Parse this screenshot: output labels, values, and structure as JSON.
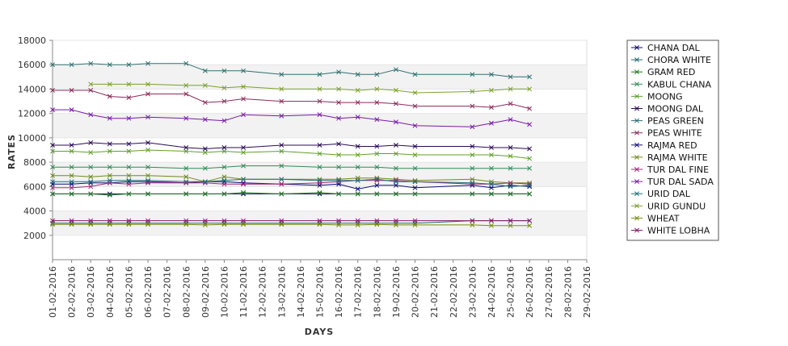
{
  "chart_data": {
    "type": "line",
    "xlabel": "DAYS",
    "ylabel": "RATES",
    "ylim": [
      0,
      18000
    ],
    "yticks": [
      2000,
      4000,
      6000,
      8000,
      10000,
      12000,
      14000,
      16000,
      18000
    ],
    "grid": "alternating horizontal bands",
    "legend_position": "right",
    "x": [
      "01-02-2016",
      "02-02-2016",
      "03-02-2016",
      "04-02-2016",
      "05-02-2016",
      "06-02-2016",
      "07-02-2016",
      "08-02-2016",
      "09-02-2016",
      "10-02-2016",
      "11-02-2016",
      "12-02-2016",
      "13-02-2016",
      "14-02-2016",
      "15-02-2016",
      "16-02-2016",
      "17-02-2016",
      "18-02-2016",
      "19-02-2016",
      "20-02-2016",
      "21-02-2016",
      "22-02-2016",
      "23-02-2016",
      "24-02-2016",
      "25-02-2016",
      "26-02-2016",
      "27-02-2016",
      "28-02-2016",
      "29-02-2016"
    ],
    "series": [
      {
        "name": "CHANA DAL",
        "color": "#0a0a6e",
        "values": [
          5400,
          5400,
          5400,
          5400,
          5400,
          5400,
          null,
          5400,
          5400,
          5400,
          5400,
          null,
          5400,
          null,
          5400,
          5400,
          5400,
          5400,
          5400,
          5400,
          null,
          null,
          5400,
          5400,
          5400,
          5400,
          null,
          null,
          null
        ]
      },
      {
        "name": "CHORA WHITE",
        "color": "#1d6a6a",
        "values": [
          3000,
          3000,
          3000,
          3000,
          3000,
          3000,
          null,
          3000,
          3000,
          3000,
          3000,
          null,
          3000,
          null,
          3000,
          3000,
          3000,
          3000,
          3000,
          3000,
          null,
          null,
          3200,
          3200,
          3200,
          3200,
          null,
          null,
          null
        ]
      },
      {
        "name": "GRAM RED",
        "color": "#1f7a1f",
        "values": [
          5400,
          5400,
          5400,
          5300,
          5400,
          5400,
          null,
          5400,
          5400,
          5400,
          5500,
          null,
          5400,
          null,
          5500,
          5400,
          5400,
          5400,
          5400,
          5400,
          null,
          null,
          5400,
          5400,
          5400,
          5400,
          null,
          null,
          null
        ]
      },
      {
        "name": "KABUL CHANA",
        "color": "#2e8b57",
        "values": [
          7600,
          7600,
          7600,
          7600,
          7600,
          7600,
          null,
          7500,
          7500,
          7600,
          7700,
          null,
          7700,
          null,
          7600,
          7600,
          7600,
          7600,
          7500,
          7500,
          null,
          null,
          7500,
          7500,
          7500,
          7500,
          null,
          null,
          null
        ]
      },
      {
        "name": "MOONG",
        "color": "#5fa02a",
        "values": [
          8900,
          8900,
          8800,
          8900,
          8900,
          9000,
          null,
          8900,
          8800,
          8900,
          8800,
          null,
          8900,
          null,
          8700,
          8600,
          8600,
          8700,
          8700,
          8600,
          null,
          null,
          8600,
          8600,
          8500,
          8300,
          null,
          null,
          null
        ]
      },
      {
        "name": "MOONG DAL",
        "color": "#2a0a55",
        "values": [
          9400,
          9400,
          9600,
          9500,
          9500,
          9600,
          null,
          9200,
          9100,
          9200,
          9200,
          null,
          9400,
          null,
          9400,
          9500,
          9300,
          9300,
          9400,
          9300,
          null,
          null,
          9300,
          9200,
          9200,
          9100,
          null,
          null,
          null
        ]
      },
      {
        "name": "PEAS GREEN",
        "color": "#2f6f6f",
        "values": [
          16000,
          16000,
          16100,
          16000,
          16000,
          16100,
          null,
          16100,
          15500,
          15500,
          15500,
          null,
          15200,
          null,
          15200,
          15400,
          15200,
          15200,
          15600,
          15200,
          null,
          null,
          15200,
          15200,
          15000,
          15000,
          null,
          null,
          null
        ]
      },
      {
        "name": "PEAS WHITE",
        "color": "#8a2a5a",
        "values": [
          13900,
          13900,
          13900,
          13400,
          13300,
          13600,
          null,
          13600,
          12900,
          13000,
          13200,
          null,
          13000,
          null,
          13000,
          12900,
          12900,
          12900,
          12800,
          12600,
          null,
          null,
          12600,
          12500,
          12800,
          12400,
          null,
          null,
          null
        ]
      },
      {
        "name": "RAJMA RED",
        "color": "#0e0e7a",
        "values": [
          6200,
          6200,
          6300,
          6300,
          6400,
          6400,
          null,
          6300,
          6400,
          6400,
          6300,
          null,
          6200,
          null,
          6100,
          6200,
          5800,
          6100,
          6100,
          5900,
          null,
          null,
          6100,
          5900,
          6100,
          6000,
          null,
          null,
          null
        ]
      },
      {
        "name": "RAJMA WHITE",
        "color": "#6d8c1a",
        "values": [
          6900,
          6900,
          6800,
          6900,
          6900,
          6900,
          null,
          6800,
          6400,
          6800,
          6600,
          null,
          6600,
          null,
          6600,
          6600,
          6700,
          6700,
          6600,
          6500,
          null,
          null,
          6600,
          6400,
          6300,
          6300,
          null,
          null,
          null
        ]
      },
      {
        "name": "TUR DAL FINE",
        "color": "#a2287a",
        "values": [
          5900,
          5900,
          6000,
          6300,
          6200,
          6300,
          null,
          6300,
          6300,
          6200,
          6200,
          null,
          6200,
          null,
          6300,
          6400,
          6500,
          6500,
          6500,
          6400,
          null,
          null,
          6200,
          6200,
          6300,
          6200,
          null,
          null,
          null
        ]
      },
      {
        "name": "TUR DAL SADA",
        "color": "#7a1aa8",
        "values": [
          12300,
          12300,
          11900,
          11600,
          11600,
          11700,
          null,
          11600,
          11500,
          11400,
          11900,
          null,
          11800,
          null,
          11900,
          11600,
          11700,
          11500,
          11300,
          11000,
          null,
          null,
          10900,
          11200,
          11500,
          11100,
          null,
          null,
          null
        ]
      },
      {
        "name": "URID DAL",
        "color": "#1f6f7a",
        "values": [
          6400,
          6400,
          6400,
          6500,
          6500,
          6500,
          null,
          6400,
          6400,
          6500,
          6600,
          null,
          6600,
          null,
          6500,
          6500,
          6500,
          6600,
          6400,
          6400,
          null,
          null,
          6300,
          6200,
          6000,
          6100,
          null,
          null,
          null
        ]
      },
      {
        "name": "URID GUNDU",
        "color": "#7aa02a",
        "values": [
          null,
          null,
          14400,
          14400,
          14400,
          14400,
          null,
          14300,
          14300,
          14100,
          14200,
          null,
          14000,
          null,
          14000,
          14000,
          13900,
          14000,
          13900,
          13700,
          null,
          null,
          13800,
          13900,
          14000,
          14000,
          null,
          null,
          null
        ]
      },
      {
        "name": "WHEAT",
        "color": "#7a8c0a",
        "values": [
          2900,
          2900,
          2900,
          2900,
          2900,
          2900,
          null,
          2900,
          2850,
          2900,
          2900,
          null,
          2900,
          null,
          2900,
          2850,
          2850,
          2900,
          2850,
          2850,
          null,
          null,
          2850,
          2800,
          2800,
          2800,
          null,
          null,
          null
        ]
      },
      {
        "name": "WHITE LOBHA",
        "color": "#8a1a6a",
        "values": [
          3200,
          3200,
          3200,
          3200,
          3200,
          3200,
          null,
          3200,
          3200,
          3200,
          3200,
          null,
          3200,
          null,
          3200,
          3200,
          3200,
          3200,
          3200,
          3200,
          null,
          null,
          3200,
          3200,
          3200,
          3200,
          null,
          null,
          null
        ]
      }
    ]
  }
}
